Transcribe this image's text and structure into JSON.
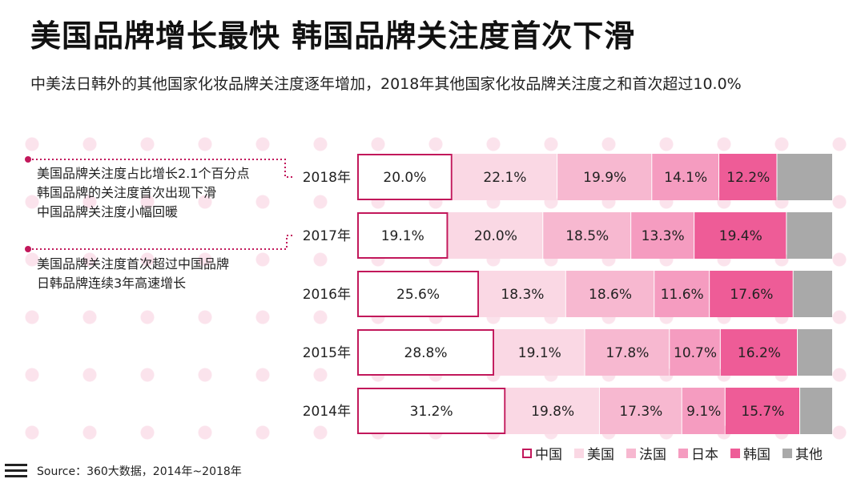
{
  "title": "美国品牌增长最快 韩国品牌关注度首次下滑",
  "subtitle": "中美法日韩外的其他国家化妆品牌关注度逐年增加，2018年其他国家化妆品牌关注度之和首次超过10.0%",
  "annotations": [
    {
      "lines": [
        "美国品牌关注度占比增长2.1个百分点",
        "韩国品牌的关注度首次出现下滑",
        "中国品牌关注度小幅回暖"
      ],
      "points_to": "2018年"
    },
    {
      "lines": [
        "美国品牌关注度首次超过中国品牌",
        "日韩品牌连续3年高速增长"
      ],
      "points_to": "2017年"
    }
  ],
  "colors": {
    "中国": "#ffffff",
    "中国_border": "#c2185b",
    "美国": "#fad8e4",
    "法国": "#f7b8d0",
    "日本": "#f59cc0",
    "韩国": "#ee5c97",
    "其他": "#a9a9a9",
    "connector": "#c2185b",
    "dots": "#fbe3ec"
  },
  "legend": [
    "中国",
    "美国",
    "法国",
    "日本",
    "韩国",
    "其他"
  ],
  "source_icon": "menu-icon",
  "source": "Source：360大数据，2014年~2018年",
  "chart_data": {
    "type": "bar",
    "orientation": "horizontal",
    "stacked": true,
    "normalized": true,
    "categories": [
      "2018年",
      "2017年",
      "2016年",
      "2015年",
      "2014年"
    ],
    "series": [
      {
        "name": "中国",
        "values": [
          20.0,
          19.1,
          25.6,
          28.8,
          31.2
        ],
        "labels": [
          "20.0%",
          "19.1%",
          "25.6%",
          "28.8%",
          "31.2%"
        ]
      },
      {
        "name": "美国",
        "values": [
          22.1,
          20.0,
          18.3,
          19.1,
          19.8
        ],
        "labels": [
          "22.1%",
          "20.0%",
          "18.3%",
          "19.1%",
          "19.8%"
        ]
      },
      {
        "name": "法国",
        "values": [
          19.9,
          18.5,
          18.6,
          17.8,
          17.3
        ],
        "labels": [
          "19.9%",
          "18.5%",
          "18.6%",
          "17.8%",
          "17.3%"
        ]
      },
      {
        "name": "日本",
        "values": [
          14.1,
          13.3,
          11.6,
          10.7,
          9.1
        ],
        "labels": [
          "14.1%",
          "13.3%",
          "11.6%",
          "10.7%",
          "9.1%"
        ]
      },
      {
        "name": "韩国",
        "values": [
          12.2,
          19.4,
          17.6,
          16.2,
          15.7
        ],
        "labels": [
          "12.2%",
          "19.4%",
          "17.6%",
          "16.2%",
          "15.7%"
        ]
      },
      {
        "name": "其他",
        "values": [
          11.7,
          9.7,
          8.3,
          7.4,
          6.9
        ],
        "labels": [
          "",
          "",
          "",
          "",
          ""
        ]
      }
    ],
    "legend_position": "bottom-right",
    "grid": false
  }
}
